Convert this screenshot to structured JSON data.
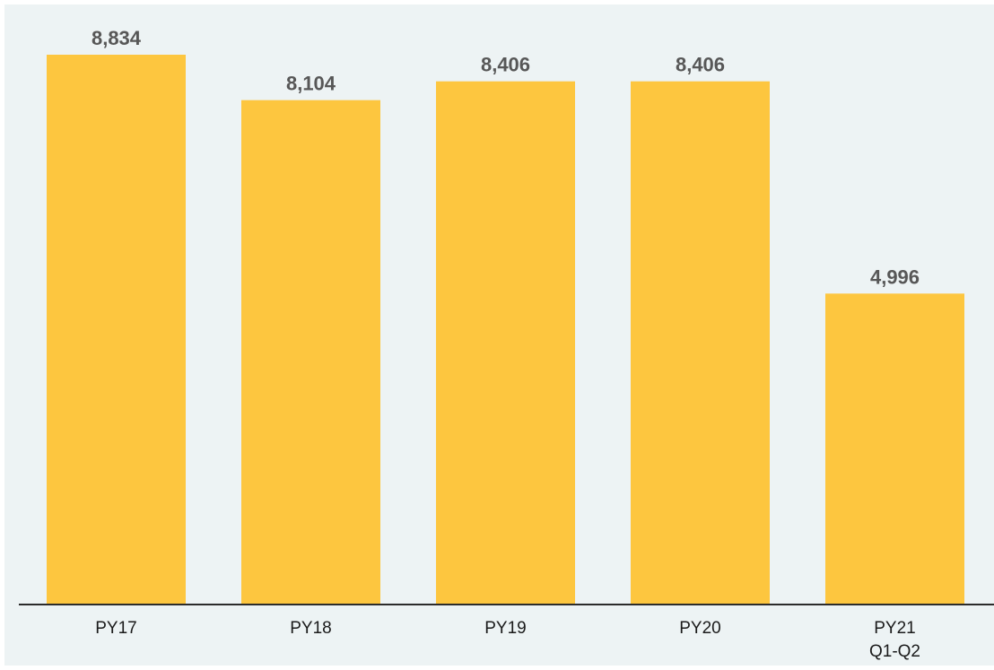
{
  "chart_data": {
    "type": "bar",
    "categories": [
      [
        "PY17"
      ],
      [
        "PY18"
      ],
      [
        "PY19"
      ],
      [
        "PY20"
      ],
      [
        "PY21",
        "Q1-Q2"
      ]
    ],
    "values": [
      8834,
      8104,
      8406,
      8406,
      4996
    ],
    "data_labels": [
      "8,834",
      "8,104",
      "8,406",
      "8,406",
      "4,996"
    ],
    "title": "",
    "xlabel": "",
    "ylabel": "",
    "grid": false,
    "legend": "none",
    "colors": {
      "bar": "#fdc63f",
      "background": "#edf3f4",
      "axis": "#2b2b2b",
      "value_label": "#575757",
      "tick_label": "#1b1b1b"
    }
  }
}
